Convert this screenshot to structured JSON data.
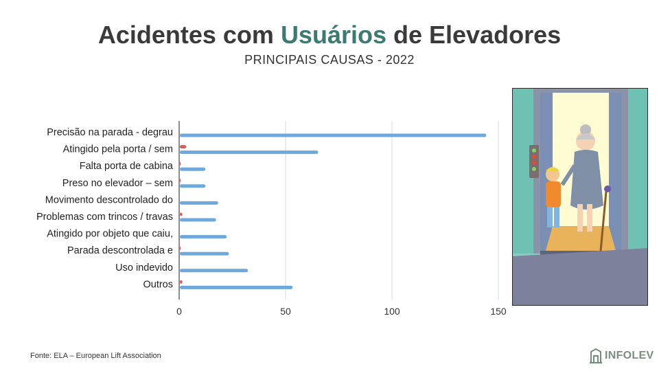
{
  "header": {
    "title_part1": "Acidentes com ",
    "title_highlight": "Usuários",
    "title_part2": " de Elevadores",
    "subtitle": "PRINCIPAIS CAUSAS - 2022",
    "highlight_color": "#3d7a72",
    "title_color": "#3a3a3a"
  },
  "chart_data": {
    "type": "bar",
    "orientation": "horizontal",
    "categories": [
      "Precisão na parada - degrau",
      "Atingido pela porta / sem",
      "Falta porta de cabina",
      "Preso no elevador – sem",
      "Movimento descontrolado do",
      "Problemas com trincos / travas",
      "Atingido por objeto que caiu,",
      "Parada descontrolada e",
      "Uso indevido",
      "Outros"
    ],
    "series": [
      {
        "values": [
          0,
          3,
          0.4,
          0.4,
          0,
          1.2,
          0,
          0.4,
          0,
          1.2
        ],
        "color": "#e05a5a"
      },
      {
        "values": [
          144,
          65,
          12,
          12,
          18,
          17,
          22,
          23,
          32,
          53
        ],
        "color": "#6fa8dc"
      }
    ],
    "xlim": [
      0,
      150
    ],
    "xticks": [
      "0",
      "50",
      "100",
      "150"
    ],
    "grid": true,
    "legend": "none"
  },
  "footer": {
    "source": "Fonte: ELA – European Lift Association",
    "logo_text": "INFOLEV"
  },
  "illustration": {
    "icon": "elevator-illustration"
  }
}
